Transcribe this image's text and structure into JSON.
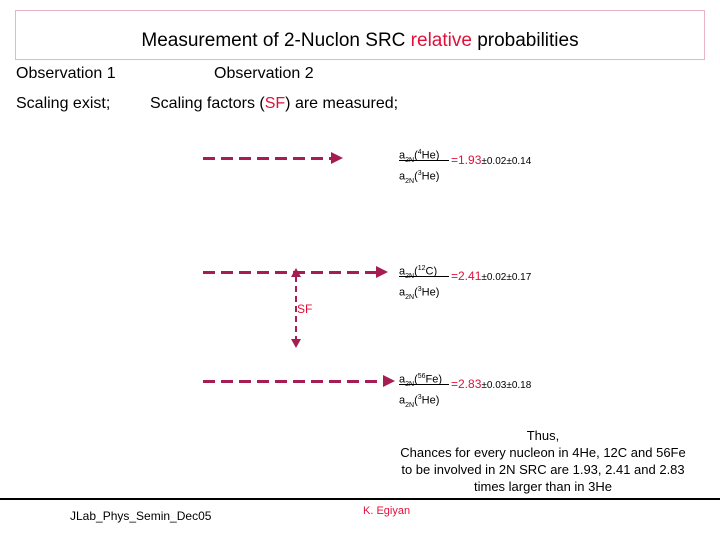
{
  "title": {
    "part1": "Measurement of 2-Nuclon SRC",
    "highlight": "relative",
    "part2": "probabilities"
  },
  "observation1": {
    "heading": "Observation 1",
    "text": "Scaling exist;"
  },
  "observation2": {
    "heading": "Observation 2",
    "text_pre": "Scaling factors (",
    "text_hl": "SF",
    "text_post": ") are measured;"
  },
  "ratios": [
    {
      "num_main": "a",
      "num_sub": "2N",
      "num_sup": "4",
      "num_tail": "He)",
      "den_sub": "2N",
      "den_sup": "3",
      "den_tail": "He)",
      "value": "=1.93",
      "errors": "±0.02±0.14"
    },
    {
      "num_main": "a",
      "num_sub": "2N",
      "num_sup": "12",
      "num_tail": "C)",
      "den_sub": "2N",
      "den_sup": "3",
      "den_tail": "He)",
      "value": "=2.41",
      "errors": "±0.02±0.17"
    },
    {
      "num_main": "a",
      "num_sub": "2N",
      "num_sup": "56",
      "num_tail": "Fe)",
      "den_sub": "2N",
      "den_sup": "3",
      "den_tail": "He)",
      "value": "=2.83",
      "errors": "±0.03±0.18"
    }
  ],
  "sf_label": "SF",
  "conclusion": {
    "line1": "Thus,",
    "line2": "Chances for every nucleon in 4He, 12C and 56Fe",
    "line3": "to be involved in 2N SRC are 1.93, 2.41 and 2.83",
    "line4": "times larger than in 3He"
  },
  "footer": {
    "left": "JLab_Phys_Semin_Dec05",
    "right": "K. Egiyan"
  },
  "colors": {
    "accent_red": "#e0103a",
    "arrow": "#a51d52"
  }
}
